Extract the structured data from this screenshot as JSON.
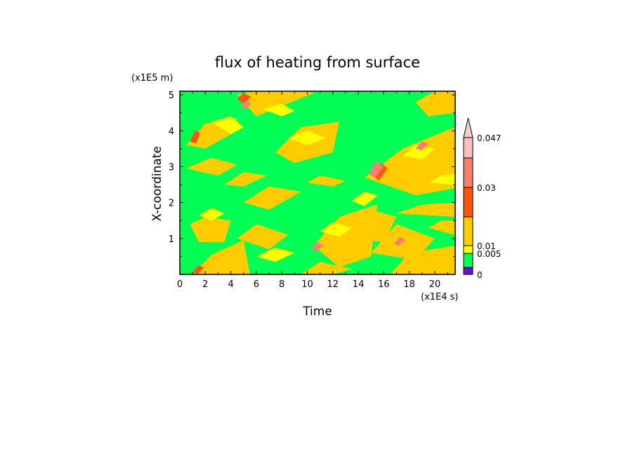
{
  "chart_data": {
    "type": "heatmap",
    "title": "flux of heating from surface",
    "xlabel": "Time",
    "ylabel": "X-coordinate",
    "x_unit": "(x1E4 s)",
    "y_unit": "(x1E5 m)",
    "xlim": [
      0,
      21.6
    ],
    "ylim": [
      0,
      5.1
    ],
    "x_ticks": [
      0,
      2,
      4,
      6,
      8,
      10,
      12,
      14,
      16,
      18,
      20
    ],
    "y_ticks": [
      1,
      2,
      3,
      4,
      5
    ],
    "grid": false,
    "background_level_color": "#00ff55",
    "colorbar": {
      "orientation": "vertical",
      "placement": "right",
      "extend": "max",
      "levels": [
        {
          "color": "#6a0fd4",
          "label": "0"
        },
        {
          "color": "#00ff55",
          "label": "0.005"
        },
        {
          "color": "#ffff00",
          "label": "0.01"
        },
        {
          "color": "#ffcc00",
          "label": ""
        },
        {
          "color": "#ff5511",
          "label": "0.03"
        },
        {
          "color": "#f88070",
          "label": ""
        },
        {
          "color": "#f8c0c0",
          "label": "0.047"
        }
      ],
      "extend_color": "#f8d0d0"
    },
    "patches": [
      {
        "color": "#ffcc00",
        "x": [
          0.5,
          2.0,
          4.5,
          4.0,
          2.0
        ],
        "y": [
          3.6,
          4.2,
          4.35,
          3.9,
          3.5
        ]
      },
      {
        "color": "#ffcc00",
        "x": [
          4.5,
          6.0,
          10.5,
          10.0,
          6.0
        ],
        "y": [
          5.0,
          4.4,
          5.05,
          5.1,
          5.1
        ]
      },
      {
        "color": "#ffcc00",
        "x": [
          7.5,
          9.5,
          12.5,
          12.0,
          9.0
        ],
        "y": [
          3.4,
          4.1,
          4.25,
          3.4,
          3.1
        ]
      },
      {
        "color": "#ffcc00",
        "x": [
          0.5,
          2.5,
          4.5,
          3.0
        ],
        "y": [
          2.95,
          3.25,
          3.05,
          2.75
        ]
      },
      {
        "color": "#ffcc00",
        "x": [
          3.5,
          5.0,
          6.8,
          5.0
        ],
        "y": [
          2.5,
          2.85,
          2.75,
          2.45
        ]
      },
      {
        "color": "#ffcc00",
        "x": [
          5.0,
          7.0,
          9.5,
          7.0
        ],
        "y": [
          2.0,
          2.45,
          2.3,
          1.8
        ]
      },
      {
        "color": "#ffcc00",
        "x": [
          10.0,
          11.0,
          13.0,
          12.0
        ],
        "y": [
          2.55,
          2.75,
          2.6,
          2.45
        ]
      },
      {
        "color": "#ffcc00",
        "x": [
          0.8,
          2.0,
          4.0,
          3.5,
          1.5
        ],
        "y": [
          1.4,
          1.6,
          1.5,
          0.9,
          0.9
        ]
      },
      {
        "color": "#ffcc00",
        "x": [
          1.0,
          2.5,
          5.0,
          5.5,
          3.5
        ],
        "y": [
          0.0,
          0.55,
          0.95,
          0.0,
          0.0
        ]
      },
      {
        "color": "#ffcc00",
        "x": [
          4.5,
          6.0,
          8.5,
          7.0
        ],
        "y": [
          1.0,
          1.4,
          1.1,
          0.7
        ]
      },
      {
        "color": "#ffcc00",
        "x": [
          10.5,
          12.5,
          15.5,
          15.0,
          12.5
        ],
        "y": [
          0.8,
          1.6,
          1.95,
          0.5,
          0.2
        ]
      },
      {
        "color": "#ffcc00",
        "x": [
          9.5,
          11.0,
          13.5,
          12.0
        ],
        "y": [
          0.0,
          0.35,
          0.15,
          0.0
        ]
      },
      {
        "color": "#ffcc00",
        "x": [
          13.5,
          15.5,
          17.0,
          16.0
        ],
        "y": [
          1.0,
          1.75,
          1.6,
          0.9
        ]
      },
      {
        "color": "#ffcc00",
        "x": [
          15.0,
          17.0,
          20.0,
          18.5
        ],
        "y": [
          0.6,
          1.4,
          1.0,
          0.4
        ]
      },
      {
        "color": "#ffcc00",
        "x": [
          16.5,
          18.0,
          21.6,
          21.6,
          19.0
        ],
        "y": [
          0.0,
          0.6,
          0.8,
          0.0,
          0.0
        ]
      },
      {
        "color": "#ffcc00",
        "x": [
          14.5,
          17.5,
          20.5,
          21.6,
          21.6,
          18.5
        ],
        "y": [
          2.7,
          3.5,
          3.95,
          4.1,
          2.4,
          2.2
        ]
      },
      {
        "color": "#ffcc00",
        "x": [
          18.5,
          19.5,
          21.6,
          21.6,
          20.0
        ],
        "y": [
          4.8,
          4.4,
          4.5,
          5.1,
          5.1
        ]
      },
      {
        "color": "#ffcc00",
        "x": [
          17.0,
          19.0,
          21.6,
          21.6
        ],
        "y": [
          1.7,
          1.95,
          2.0,
          1.6
        ]
      },
      {
        "color": "#ffcc00",
        "x": [
          19.5,
          20.5,
          21.6,
          21.6
        ],
        "y": [
          1.3,
          1.5,
          1.5,
          1.1
        ]
      },
      {
        "color": "#ffff00",
        "x": [
          2.5,
          4.0,
          5.0,
          4.0
        ],
        "y": [
          4.25,
          4.4,
          4.1,
          3.9
        ]
      },
      {
        "color": "#ffff00",
        "x": [
          6.5,
          8.0,
          9.0,
          8.0
        ],
        "y": [
          4.6,
          4.75,
          4.55,
          4.4
        ]
      },
      {
        "color": "#ffff00",
        "x": [
          13.5,
          14.5,
          15.5,
          14.5
        ],
        "y": [
          2.05,
          2.3,
          2.2,
          1.9
        ]
      },
      {
        "color": "#ffff00",
        "x": [
          8.5,
          10.0,
          11.5,
          10.0
        ],
        "y": [
          3.8,
          4.0,
          3.8,
          3.6
        ]
      },
      {
        "color": "#ffff00",
        "x": [
          1.5,
          2.5,
          3.5,
          2.5
        ],
        "y": [
          1.65,
          1.85,
          1.7,
          1.5
        ]
      },
      {
        "color": "#ffff00",
        "x": [
          6.0,
          7.5,
          9.0,
          7.5
        ],
        "y": [
          0.5,
          0.75,
          0.6,
          0.35
        ]
      },
      {
        "color": "#ffff00",
        "x": [
          17.5,
          18.5,
          20.0,
          19.0
        ],
        "y": [
          3.3,
          3.6,
          3.5,
          3.2
        ]
      },
      {
        "color": "#ffff00",
        "x": [
          11.0,
          12.0,
          13.5,
          12.5
        ],
        "y": [
          1.2,
          1.45,
          1.3,
          1.05
        ]
      },
      {
        "color": "#ffff00",
        "x": [
          19.5,
          20.5,
          21.6,
          21.6
        ],
        "y": [
          2.55,
          2.75,
          2.8,
          2.5
        ]
      },
      {
        "color": "#ff5511",
        "x": [
          15.2,
          15.8,
          16.3,
          15.6
        ],
        "y": [
          2.75,
          3.1,
          2.95,
          2.6
        ]
      },
      {
        "color": "#ff5511",
        "x": [
          0.8,
          1.2,
          1.6,
          1.3
        ],
        "y": [
          3.7,
          4.0,
          3.95,
          3.65
        ]
      },
      {
        "color": "#ff5511",
        "x": [
          4.5,
          5.0,
          5.6,
          5.0
        ],
        "y": [
          4.9,
          5.05,
          4.95,
          4.75
        ]
      },
      {
        "color": "#ff5511",
        "x": [
          1.0,
          1.4,
          1.9,
          1.4
        ],
        "y": [
          0.05,
          0.25,
          0.2,
          0.0
        ]
      },
      {
        "color": "#f88070",
        "x": [
          14.8,
          15.4,
          16.0,
          15.3
        ],
        "y": [
          2.8,
          3.15,
          3.0,
          2.7
        ]
      },
      {
        "color": "#f88070",
        "x": [
          4.8,
          5.2,
          5.6,
          5.1
        ],
        "y": [
          4.7,
          4.85,
          4.75,
          4.6
        ]
      },
      {
        "color": "#f88070",
        "x": [
          10.3,
          10.8,
          11.3,
          10.7
        ],
        "y": [
          0.75,
          0.9,
          0.8,
          0.65
        ]
      },
      {
        "color": "#f88070",
        "x": [
          18.5,
          19.0,
          19.5,
          19.0
        ],
        "y": [
          3.5,
          3.7,
          3.65,
          3.45
        ]
      },
      {
        "color": "#f88070",
        "x": [
          16.8,
          17.3,
          17.7,
          17.2
        ],
        "y": [
          0.85,
          1.05,
          0.95,
          0.8
        ]
      }
    ]
  }
}
